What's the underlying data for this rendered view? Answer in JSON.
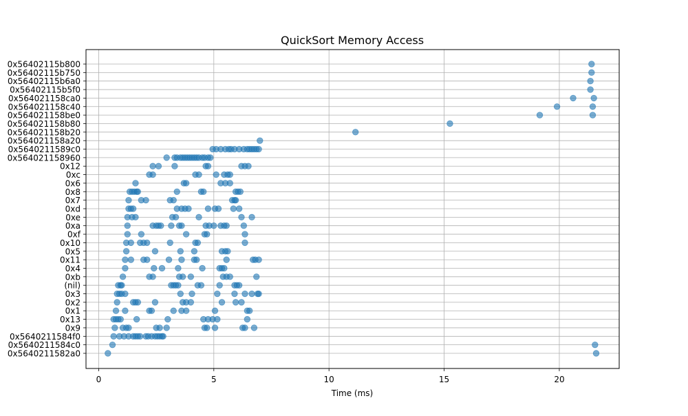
{
  "chart_data": {
    "type": "scatter",
    "title": "QuickSort Memory Access",
    "xlabel": "Time (ms)",
    "ylabel": "",
    "xlim": [
      -0.55,
      22.6
    ],
    "xticks": [
      0,
      5,
      10,
      15,
      20
    ],
    "grid": true,
    "legend": "none",
    "marker_color": "#1f77b4",
    "marker_alpha": 0.6,
    "y_categories": [
      "0x5640211582a0",
      "0x5640211584c0",
      "0x5640211584f0",
      "0x9",
      "0x13",
      "0x1",
      "0x2",
      "0x3",
      "(nil)",
      "0xb",
      "0x4",
      "0x11",
      "0x5",
      "0x10",
      "0xf",
      "0xa",
      "0xe",
      "0xd",
      "0x7",
      "0x8",
      "0x6",
      "0xc",
      "0x12",
      "0x564021158960",
      "0x5640211589c0",
      "0x564021158a20",
      "0x564021158b20",
      "0x564021158b80",
      "0x564021158be0",
      "0x564021158c40",
      "0x564021158ca0",
      "0x56402115b5f0",
      "0x56402115b6a0",
      "0x56402115b750",
      "0x56402115b800"
    ],
    "points": [
      {
        "y": "0x5640211582a0",
        "x": [
          0.4,
          21.6
        ]
      },
      {
        "y": "0x5640211584c0",
        "x": [
          0.6,
          21.55
        ]
      },
      {
        "y": "0x5640211584f0",
        "x": [
          0.65,
          0.9,
          1.1,
          1.3,
          1.5,
          1.6,
          1.7,
          1.8,
          2.05,
          2.15,
          2.3,
          2.45,
          2.55,
          2.65,
          2.75,
          2.8
        ]
      },
      {
        "y": "0x9",
        "x": [
          0.7,
          1.05,
          1.2,
          1.3,
          2.5,
          2.65,
          2.95,
          4.6,
          4.7,
          5.05,
          6.25,
          6.35,
          6.75
        ]
      },
      {
        "y": "0x13",
        "x": [
          0.65,
          0.75,
          0.85,
          0.95,
          1.65,
          3.0,
          4.55,
          4.75,
          4.95,
          5.15,
          6.45
        ]
      },
      {
        "y": "0x1",
        "x": [
          0.75,
          1.15,
          2.2,
          2.3,
          3.25,
          3.6,
          3.8,
          5.05,
          6.45,
          6.55
        ]
      },
      {
        "y": "0x2",
        "x": [
          0.8,
          1.5,
          1.6,
          1.7,
          2.45,
          3.65,
          3.8,
          4.0,
          5.35,
          5.95,
          6.2
        ]
      },
      {
        "y": "0x3",
        "x": [
          0.8,
          0.9,
          1.0,
          1.15,
          3.55,
          4.05,
          5.15,
          5.9,
          6.35,
          6.65,
          6.9,
          6.95
        ]
      },
      {
        "y": "(nil)",
        "x": [
          0.85,
          0.95,
          1.0,
          3.15,
          3.25,
          3.35,
          3.45,
          4.3,
          4.45,
          5.25,
          5.9,
          6.0,
          6.1
        ]
      },
      {
        "y": "0xb",
        "x": [
          1.05,
          2.2,
          2.35,
          3.5,
          3.65,
          4.0,
          5.4,
          5.55,
          5.7,
          6.85
        ]
      },
      {
        "y": "0x4",
        "x": [
          1.15,
          2.4,
          2.75,
          3.45,
          4.5,
          5.25,
          5.35,
          5.45
        ]
      },
      {
        "y": "0x11",
        "x": [
          1.15,
          1.4,
          1.95,
          2.1,
          3.05,
          3.6,
          4.15,
          4.25,
          5.55,
          6.7,
          6.8,
          6.95
        ]
      },
      {
        "y": "0x5",
        "x": [
          1.2,
          2.45,
          3.55,
          4.15,
          5.35,
          5.5,
          5.6
        ]
      },
      {
        "y": "0x10",
        "x": [
          1.2,
          1.4,
          1.8,
          1.95,
          2.1,
          3.1,
          4.2,
          4.3,
          6.35
        ]
      },
      {
        "y": "0xf",
        "x": [
          1.25,
          1.85,
          3.8,
          4.6,
          4.7,
          6.35
        ]
      },
      {
        "y": "0xa",
        "x": [
          1.25,
          2.35,
          2.5,
          2.6,
          2.7,
          3.15,
          3.5,
          3.6,
          4.65,
          4.8,
          5.0,
          5.3,
          5.45,
          5.55,
          6.3
        ]
      },
      {
        "y": "0xe",
        "x": [
          1.25,
          1.45,
          1.6,
          3.2,
          3.35,
          4.35,
          6.2,
          6.65
        ]
      },
      {
        "y": "0xd",
        "x": [
          1.3,
          1.4,
          1.5,
          3.4,
          3.6,
          3.75,
          3.9,
          4.75,
          5.05,
          5.2,
          5.85,
          6.1
        ]
      },
      {
        "y": "0x7",
        "x": [
          1.3,
          1.85,
          2.05,
          3.1,
          3.25,
          5.8,
          5.9,
          5.95
        ]
      },
      {
        "y": "0x8",
        "x": [
          1.35,
          1.45,
          1.55,
          1.65,
          1.7,
          3.4,
          4.45,
          4.55,
          5.95,
          6.05,
          6.15
        ]
      },
      {
        "y": "0x6",
        "x": [
          1.6,
          3.7,
          3.8,
          5.3,
          5.5,
          5.7
        ]
      },
      {
        "y": "0xc",
        "x": [
          2.2,
          2.35,
          4.2,
          4.35,
          5.1,
          5.45,
          5.6,
          5.7
        ]
      },
      {
        "y": "0x12",
        "x": [
          2.35,
          2.6,
          3.3,
          4.65,
          4.75,
          6.2,
          6.35,
          6.5
        ]
      },
      {
        "y": "0x564021158960",
        "x": [
          2.95,
          3.3,
          3.4,
          3.55,
          3.65,
          3.75,
          3.85,
          3.95,
          4.05,
          4.15,
          4.25,
          4.35,
          4.5,
          4.6,
          4.75,
          4.85
        ]
      },
      {
        "y": "0x5640211589c0",
        "x": [
          4.95,
          5.1,
          5.3,
          5.5,
          5.65,
          5.75,
          5.9,
          6.1,
          6.3,
          6.45,
          6.55,
          6.65,
          6.75,
          6.85,
          6.95
        ]
      },
      {
        "y": "0x564021158a20",
        "x": [
          7.0
        ]
      },
      {
        "y": "0x564021158b20",
        "x": [
          11.15
        ]
      },
      {
        "y": "0x564021158b80",
        "x": [
          15.25
        ]
      },
      {
        "y": "0x564021158be0",
        "x": [
          19.15,
          21.45
        ]
      },
      {
        "y": "0x564021158c40",
        "x": [
          19.9,
          21.45
        ]
      },
      {
        "y": "0x564021158ca0",
        "x": [
          20.6,
          21.5
        ]
      },
      {
        "y": "0x56402115b5f0",
        "x": [
          21.35
        ]
      },
      {
        "y": "0x56402115b6a0",
        "x": [
          21.35
        ]
      },
      {
        "y": "0x56402115b750",
        "x": [
          21.4
        ]
      },
      {
        "y": "0x56402115b800",
        "x": [
          21.4
        ]
      }
    ]
  }
}
